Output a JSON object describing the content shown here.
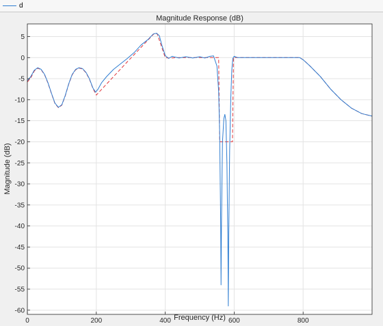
{
  "legend": {
    "items": [
      {
        "label": "d",
        "color": "#2e7dd1"
      }
    ]
  },
  "chart_data": {
    "type": "line",
    "title": "Magnitude Response (dB)",
    "xlabel": "Frequency (Hz)",
    "ylabel": "Magnitude (dB)",
    "xlim": [
      0,
      1000
    ],
    "ylim": [
      -61,
      8
    ],
    "xticks": [
      0,
      200,
      400,
      600,
      800
    ],
    "yticks": [
      5,
      0,
      -5,
      -10,
      -15,
      -20,
      -25,
      -30,
      -35,
      -40,
      -45,
      -50,
      -55,
      -60
    ],
    "grid": true,
    "legend_position": "top-left",
    "series": [
      {
        "name": "d",
        "style": "solid",
        "color": "#2e7dd1",
        "points": [
          [
            0,
            -5.5
          ],
          [
            10,
            -4.5
          ],
          [
            20,
            -3
          ],
          [
            30,
            -2.4
          ],
          [
            40,
            -2.8
          ],
          [
            50,
            -4
          ],
          [
            60,
            -6
          ],
          [
            70,
            -8.5
          ],
          [
            80,
            -10.8
          ],
          [
            90,
            -11.8
          ],
          [
            100,
            -11.2
          ],
          [
            110,
            -9
          ],
          [
            120,
            -6.2
          ],
          [
            130,
            -4
          ],
          [
            140,
            -2.8
          ],
          [
            150,
            -2.4
          ],
          [
            160,
            -2.6
          ],
          [
            170,
            -3.5
          ],
          [
            180,
            -5
          ],
          [
            190,
            -7.2
          ],
          [
            198,
            -8.2
          ],
          [
            205,
            -7.5
          ],
          [
            215,
            -6
          ],
          [
            230,
            -4.5
          ],
          [
            250,
            -2.8
          ],
          [
            270,
            -1.5
          ],
          [
            290,
            -0.2
          ],
          [
            310,
            1.2
          ],
          [
            330,
            3
          ],
          [
            350,
            4.3
          ],
          [
            365,
            5.6
          ],
          [
            375,
            5.8
          ],
          [
            383,
            5.2
          ],
          [
            390,
            3
          ],
          [
            400,
            0.5
          ],
          [
            410,
            -0.2
          ],
          [
            420,
            0.3
          ],
          [
            440,
            -0.1
          ],
          [
            460,
            0.2
          ],
          [
            480,
            -0.1
          ],
          [
            500,
            0.2
          ],
          [
            515,
            -0.1
          ],
          [
            530,
            0.3
          ],
          [
            540,
            0.4
          ],
          [
            550,
            -2
          ],
          [
            555,
            -8
          ],
          [
            558,
            -18
          ],
          [
            561,
            -40
          ],
          [
            562,
            -54
          ],
          [
            563,
            -40
          ],
          [
            566,
            -20
          ],
          [
            570,
            -14.5
          ],
          [
            573,
            -13.5
          ],
          [
            576,
            -15
          ],
          [
            579,
            -25
          ],
          [
            582,
            -45
          ],
          [
            583,
            -59
          ],
          [
            584,
            -45
          ],
          [
            587,
            -22
          ],
          [
            590,
            -10
          ],
          [
            593,
            -3
          ],
          [
            596,
            -0.2
          ],
          [
            600,
            0.3
          ],
          [
            610,
            0
          ],
          [
            630,
            0
          ],
          [
            700,
            0
          ],
          [
            790,
            0
          ],
          [
            800,
            -0.5
          ],
          [
            820,
            -2
          ],
          [
            850,
            -4.5
          ],
          [
            880,
            -7.5
          ],
          [
            910,
            -10
          ],
          [
            940,
            -12
          ],
          [
            970,
            -13.3
          ],
          [
            1000,
            -13.9
          ]
        ]
      },
      {
        "name": "",
        "style": "dashed",
        "color": "#e0353b",
        "points": [
          [
            0,
            -5.8
          ],
          [
            10,
            -4.8
          ],
          [
            20,
            -3.2
          ],
          [
            30,
            -2.5
          ],
          [
            40,
            -2.9
          ],
          [
            50,
            -4.1
          ],
          [
            60,
            -6.1
          ],
          [
            70,
            -8.6
          ],
          [
            80,
            -10.9
          ],
          [
            90,
            -11.9
          ],
          [
            100,
            -11.3
          ],
          [
            110,
            -9.1
          ],
          [
            120,
            -6.3
          ],
          [
            130,
            -4.1
          ],
          [
            140,
            -2.9
          ],
          [
            150,
            -2.5
          ],
          [
            160,
            -2.7
          ],
          [
            170,
            -3.6
          ],
          [
            180,
            -5.1
          ],
          [
            190,
            -7.3
          ],
          [
            200,
            -8.9
          ],
          [
            290,
            -1
          ],
          [
            370,
            5.9
          ],
          [
            377,
            5.6
          ],
          [
            400,
            0
          ],
          [
            410,
            -0.1
          ],
          [
            440,
            0
          ],
          [
            470,
            0
          ],
          [
            500,
            0
          ],
          [
            540,
            0
          ],
          [
            555,
            0
          ],
          [
            558,
            -20
          ],
          [
            580,
            -20
          ],
          [
            595,
            -20
          ],
          [
            598,
            0
          ],
          [
            610,
            0
          ],
          [
            700,
            0
          ],
          [
            790,
            0
          ],
          [
            800,
            -0.5
          ],
          [
            820,
            -2
          ],
          [
            850,
            -4.5
          ],
          [
            880,
            -7.5
          ],
          [
            910,
            -10
          ],
          [
            940,
            -12
          ],
          [
            970,
            -13.3
          ],
          [
            1000,
            -13.9
          ]
        ]
      }
    ]
  }
}
